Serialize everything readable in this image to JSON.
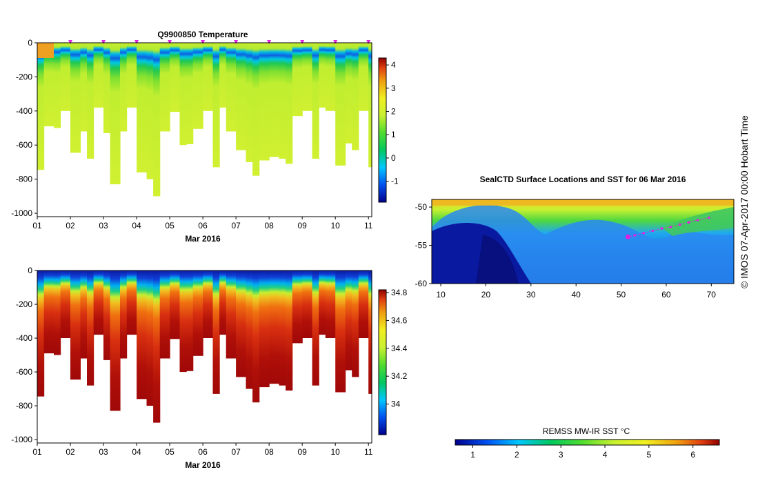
{
  "chart_data": [
    {
      "type": "heatmap",
      "title": "Q9900850  Temperature",
      "xlabel": "Mar 2016",
      "ylabel": "",
      "x_ticks": [
        "01",
        "02",
        "03",
        "04",
        "05",
        "06",
        "07",
        "08",
        "09",
        "10",
        "11"
      ],
      "xlim": [
        1,
        11.1
      ],
      "ylim": [
        -1020,
        0
      ],
      "y_ticks": [
        0,
        -200,
        -400,
        -600,
        -800,
        -1000
      ],
      "colorbar": {
        "min": -1.9,
        "max": 4.3,
        "ticks": [
          4,
          3,
          2,
          1,
          0,
          -1
        ]
      },
      "profile_days": [
        1.0,
        1.2,
        1.5,
        1.7,
        2.0,
        2.3,
        2.5,
        2.7,
        3.0,
        3.2,
        3.5,
        3.7,
        4.0,
        4.3,
        4.5,
        4.7,
        5.0,
        5.3,
        5.5,
        5.7,
        6.0,
        6.3,
        6.5,
        6.7,
        7.0,
        7.3,
        7.5,
        7.7,
        8.0,
        8.3,
        8.5,
        8.7,
        9.0,
        9.3,
        9.5,
        9.7,
        10.0,
        10.3,
        10.5,
        10.7,
        11.0
      ],
      "max_depths": [
        -745,
        -490,
        -500,
        -400,
        -645,
        -520,
        -680,
        -380,
        -530,
        -830,
        -520,
        -380,
        -760,
        -800,
        -900,
        -520,
        -405,
        -600,
        -595,
        -505,
        -400,
        -730,
        -380,
        -520,
        -630,
        -700,
        -780,
        -690,
        -670,
        -680,
        -710,
        -430,
        -400,
        -680,
        -380,
        -400,
        -720,
        -590,
        -630,
        -400,
        -730
      ],
      "surface_markers_days": [
        2.0,
        3.0,
        4.0,
        5.0,
        6.0,
        7.0,
        8.0,
        9.0,
        10.0,
        11.0
      ],
      "colors": {
        "mixed_layer": "#c8ee30",
        "surface_warm": "#f0a020",
        "cold_core": "#1060e0"
      }
    },
    {
      "type": "heatmap",
      "title": "",
      "xlabel": "Mar 2016",
      "ylabel": "",
      "x_ticks": [
        "01",
        "02",
        "03",
        "04",
        "05",
        "06",
        "07",
        "08",
        "09",
        "10",
        "11"
      ],
      "xlim": [
        1,
        11.1
      ],
      "ylim": [
        -1020,
        0
      ],
      "y_ticks": [
        0,
        -200,
        -400,
        -600,
        -800,
        -1000
      ],
      "colorbar": {
        "min": 33.78,
        "max": 34.82,
        "ticks": [
          34.8,
          34.6,
          34.4,
          34.2,
          34
        ]
      }
    },
    {
      "type": "heatmap",
      "title": "SealCTD Surface Locations and SST for 06 Mar 2016",
      "xlabel": "",
      "ylabel": "",
      "x_ticks": [
        10,
        20,
        30,
        40,
        50,
        60,
        70
      ],
      "xlim": [
        8,
        75
      ],
      "ylim": [
        -60,
        -49
      ],
      "y_ticks": [
        -50,
        -55,
        -60
      ],
      "track": {
        "lon": [
          51.5,
          53,
          55,
          57,
          59,
          61,
          63,
          65,
          67,
          69.5
        ],
        "lat": [
          -53.9,
          -53.7,
          -53.4,
          -53.1,
          -52.8,
          -52.6,
          -52.3,
          -52.0,
          -51.7,
          -51.4
        ]
      },
      "colorbar": {
        "label": "REMSS MW-IR SST °C",
        "min": 0.6,
        "max": 6.6,
        "ticks": [
          1,
          2,
          3,
          4,
          5,
          6
        ]
      }
    }
  ],
  "credit": "© IMOS 07-Apr-2017 00:00 Hobart Time"
}
